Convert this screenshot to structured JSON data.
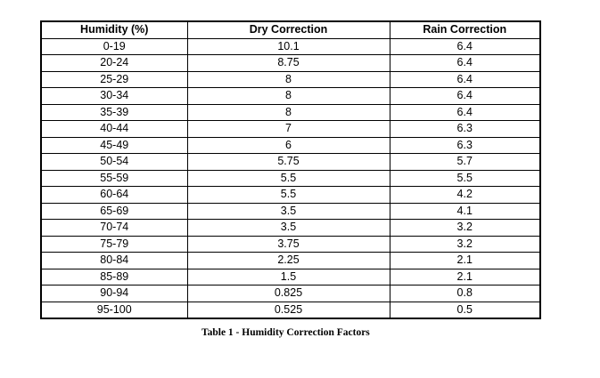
{
  "table": {
    "headers": [
      "Humidity (%)",
      "Dry Correction",
      "Rain Correction"
    ],
    "rows": [
      [
        "0-19",
        "10.1",
        "6.4"
      ],
      [
        "20-24",
        "8.75",
        "6.4"
      ],
      [
        "25-29",
        "8",
        "6.4"
      ],
      [
        "30-34",
        "8",
        "6.4"
      ],
      [
        "35-39",
        "8",
        "6.4"
      ],
      [
        "40-44",
        "7",
        "6.3"
      ],
      [
        "45-49",
        "6",
        "6.3"
      ],
      [
        "50-54",
        "5.75",
        "5.7"
      ],
      [
        "55-59",
        "5.5",
        "5.5"
      ],
      [
        "60-64",
        "5.5",
        "4.2"
      ],
      [
        "65-69",
        "3.5",
        "4.1"
      ],
      [
        "70-74",
        "3.5",
        "3.2"
      ],
      [
        "75-79",
        "3.75",
        "3.2"
      ],
      [
        "80-84",
        "2.25",
        "2.1"
      ],
      [
        "85-89",
        "1.5",
        "2.1"
      ],
      [
        "90-94",
        "0.825",
        "0.8"
      ],
      [
        "95-100",
        "0.525",
        "0.5"
      ]
    ]
  },
  "caption": "Table 1 - Humidity Correction Factors"
}
